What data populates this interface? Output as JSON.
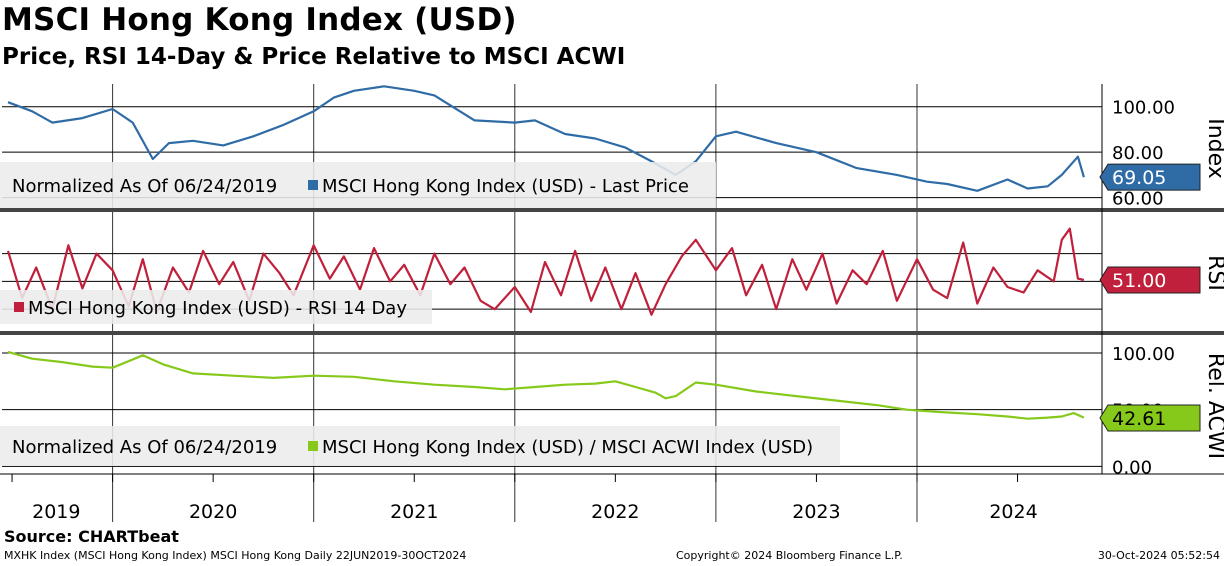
{
  "header": {
    "title": "MSCI Hong Kong Index (USD)",
    "subtitle": "Price, RSI 14-Day & Price Relative to MSCI ACWI"
  },
  "footer": {
    "source": "Source: CHARTbeat",
    "ticker_info": "MXHK Index (MSCI Hong Kong Index) MSCI Hong Kong  Daily 22JUN2019-30OCT2024",
    "copyright": "Copyright© 2024 Bloomberg Finance L.P.",
    "timestamp": "30-Oct-2024 05:52:54"
  },
  "colors": {
    "price": "#2f6ca6",
    "rsi": "#c0203b",
    "relative": "#86c91a"
  },
  "chart_data": [
    {
      "type": "line",
      "panel": "price",
      "axis_title": "Index",
      "y_ticks": [
        "100.00",
        "80.00",
        "60.00"
      ],
      "ylim": [
        55,
        110
      ],
      "legend_text": "Normalized As Of 06/24/2019",
      "series": [
        {
          "name": "MSCI Hong Kong Index (USD) - Last Price",
          "last_value": "69.05",
          "x": [
            2019.48,
            2019.6,
            2019.7,
            2019.85,
            2020.0,
            2020.1,
            2020.2,
            2020.28,
            2020.4,
            2020.55,
            2020.7,
            2020.85,
            2021.0,
            2021.1,
            2021.2,
            2021.35,
            2021.5,
            2021.6,
            2021.8,
            2022.0,
            2022.1,
            2022.25,
            2022.4,
            2022.55,
            2022.7,
            2022.8,
            2022.9,
            2023.0,
            2023.1,
            2023.3,
            2023.5,
            2023.7,
            2023.9,
            2024.05,
            2024.15,
            2024.3,
            2024.45,
            2024.55,
            2024.65,
            2024.72,
            2024.8,
            2024.83
          ],
          "values": [
            102,
            98,
            93,
            95,
            99,
            93,
            77,
            84,
            85,
            83,
            87,
            92,
            98,
            104,
            107,
            109,
            107,
            105,
            94,
            93,
            94,
            88,
            86,
            82,
            75,
            70,
            76,
            87,
            89,
            84,
            80,
            73,
            70,
            67,
            66,
            63,
            68,
            64,
            65,
            70,
            78,
            69
          ]
        }
      ]
    },
    {
      "type": "line",
      "panel": "rsi",
      "axis_title": "RSI",
      "y_ticks": [],
      "ylim": [
        15,
        100
      ],
      "series": [
        {
          "name": "MSCI Hong Kong Index (USD) - RSI 14 Day",
          "last_value": "51.00",
          "x": [
            2019.48,
            2019.55,
            2019.62,
            2019.7,
            2019.78,
            2019.85,
            2019.92,
            2020.0,
            2020.08,
            2020.15,
            2020.22,
            2020.3,
            2020.38,
            2020.45,
            2020.53,
            2020.6,
            2020.68,
            2020.75,
            2020.83,
            2020.9,
            2021.0,
            2021.08,
            2021.15,
            2021.23,
            2021.3,
            2021.38,
            2021.45,
            2021.53,
            2021.6,
            2021.68,
            2021.75,
            2021.83,
            2021.9,
            2022.0,
            2022.08,
            2022.15,
            2022.23,
            2022.3,
            2022.38,
            2022.45,
            2022.53,
            2022.6,
            2022.68,
            2022.75,
            2022.83,
            2022.9,
            2023.0,
            2023.08,
            2023.15,
            2023.23,
            2023.3,
            2023.38,
            2023.45,
            2023.53,
            2023.6,
            2023.68,
            2023.75,
            2023.83,
            2023.9,
            2024.0,
            2024.08,
            2024.15,
            2024.23,
            2024.3,
            2024.38,
            2024.45,
            2024.53,
            2024.6,
            2024.68,
            2024.72,
            2024.76,
            2024.8,
            2024.83
          ],
          "values": [
            72,
            38,
            60,
            30,
            76,
            45,
            70,
            58,
            32,
            66,
            28,
            60,
            42,
            72,
            48,
            64,
            36,
            70,
            56,
            40,
            76,
            52,
            68,
            44,
            74,
            50,
            62,
            40,
            70,
            48,
            60,
            36,
            30,
            46,
            28,
            64,
            40,
            72,
            36,
            60,
            30,
            56,
            26,
            48,
            68,
            80,
            58,
            74,
            40,
            62,
            30,
            66,
            44,
            70,
            34,
            58,
            48,
            72,
            36,
            66,
            44,
            38,
            78,
            34,
            60,
            46,
            42,
            58,
            50,
            80,
            88,
            52,
            51
          ]
        }
      ]
    },
    {
      "type": "line",
      "panel": "relative",
      "axis_title": "Rel. ACWI",
      "y_ticks": [
        "100.00",
        "50.00",
        "0.00"
      ],
      "ylim": [
        -5,
        115
      ],
      "legend_text": "Normalized As Of 06/24/2019",
      "series": [
        {
          "name": "MSCI Hong Kong Index (USD) / MSCI ACWI Index (USD)",
          "last_value": "42.61",
          "x": [
            2019.48,
            2019.6,
            2019.75,
            2019.9,
            2020.0,
            2020.15,
            2020.25,
            2020.4,
            2020.6,
            2020.8,
            2021.0,
            2021.2,
            2021.4,
            2021.6,
            2021.8,
            2021.95,
            2022.1,
            2022.25,
            2022.4,
            2022.5,
            2022.6,
            2022.7,
            2022.75,
            2022.8,
            2022.9,
            2023.0,
            2023.2,
            2023.4,
            2023.6,
            2023.8,
            2023.95,
            2024.1,
            2024.3,
            2024.45,
            2024.55,
            2024.65,
            2024.72,
            2024.78,
            2024.83
          ],
          "values": [
            101,
            95,
            92,
            88,
            87,
            98,
            90,
            82,
            80,
            78,
            80,
            79,
            75,
            72,
            70,
            68,
            70,
            72,
            73,
            75,
            70,
            65,
            60,
            62,
            74,
            72,
            66,
            62,
            58,
            54,
            50,
            48,
            46,
            44,
            42,
            43,
            44,
            47,
            43
          ]
        }
      ]
    }
  ],
  "x_axis": {
    "year_labels": [
      "2019",
      "2020",
      "2021",
      "2022",
      "2023",
      "2024"
    ]
  }
}
